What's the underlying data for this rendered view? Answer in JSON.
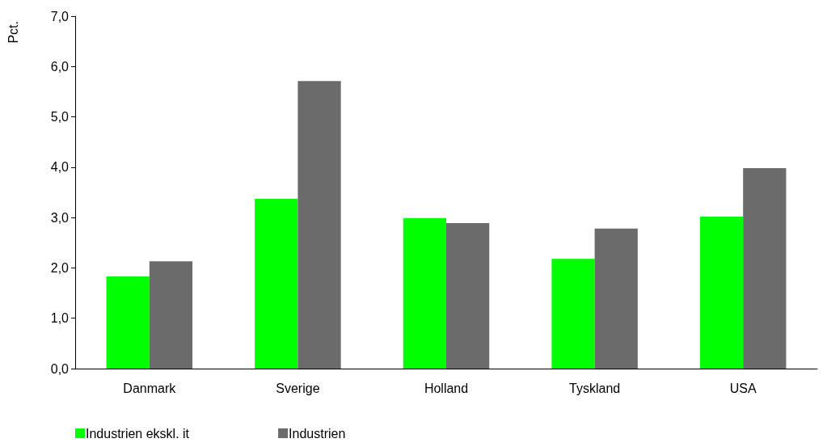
{
  "chart_data": {
    "type": "bar",
    "ylabel": "Pct.",
    "categories": [
      "Danmark",
      "Sverige",
      "Holland",
      "Tyskland",
      "USA"
    ],
    "series": [
      {
        "name": "Industrien ekskl. it",
        "color": "#00ff00",
        "values": [
          1.83,
          3.37,
          2.99,
          2.18,
          3.02
        ]
      },
      {
        "name": "Industrien",
        "color": "#6b6b6b",
        "values": [
          2.13,
          5.71,
          2.89,
          2.78,
          3.98
        ]
      }
    ],
    "ylim": [
      0,
      7
    ],
    "yticks": [
      {
        "value": 0,
        "label": "0,0"
      },
      {
        "value": 1,
        "label": "1,0"
      },
      {
        "value": 2,
        "label": "2,0"
      },
      {
        "value": 3,
        "label": "3,0"
      },
      {
        "value": 4,
        "label": "4,0"
      },
      {
        "value": 5,
        "label": "5,0"
      },
      {
        "value": 6,
        "label": "6,0"
      },
      {
        "value": 7,
        "label": "7,0"
      }
    ],
    "grid": false,
    "legend": "bottom left"
  }
}
